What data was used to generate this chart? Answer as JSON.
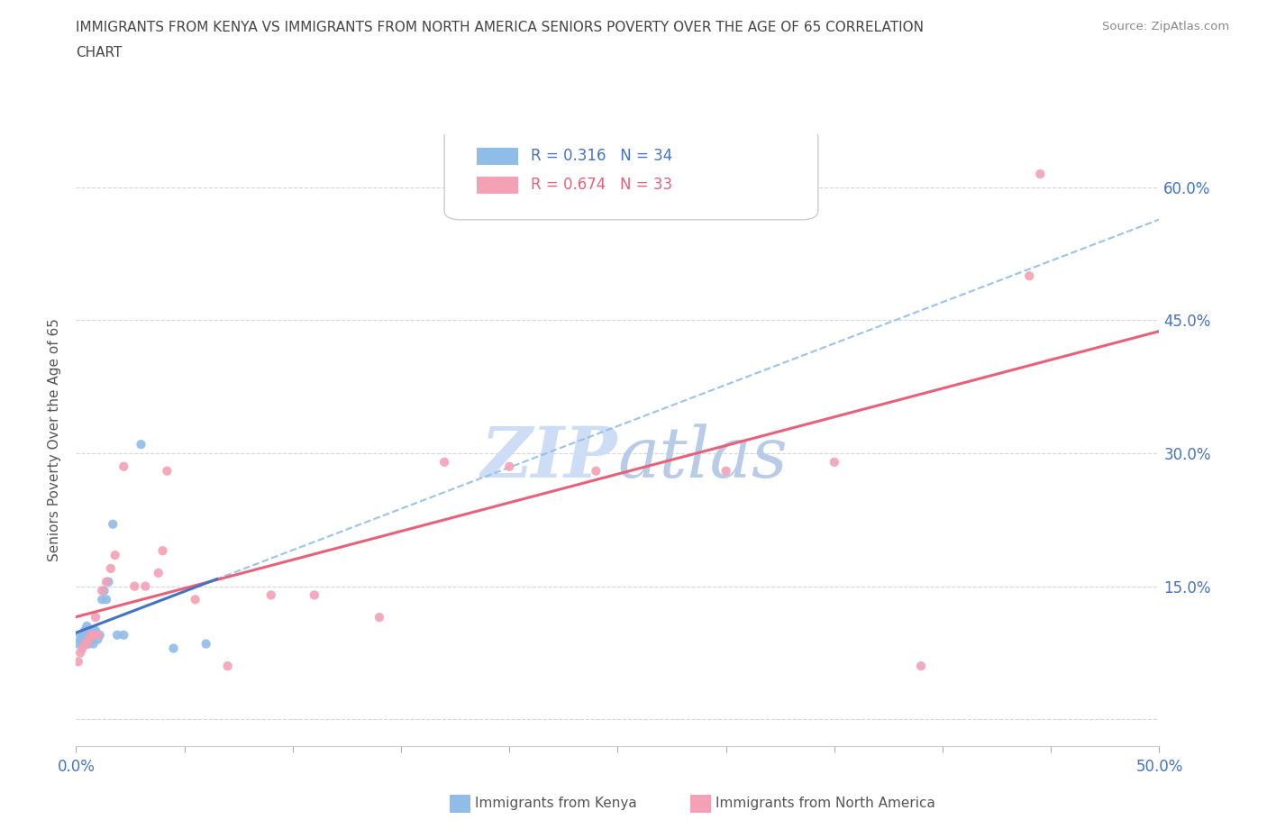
{
  "title_line1": "IMMIGRANTS FROM KENYA VS IMMIGRANTS FROM NORTH AMERICA SENIORS POVERTY OVER THE AGE OF 65 CORRELATION",
  "title_line2": "CHART",
  "source_text": "Source: ZipAtlas.com",
  "ylabel": "Seniors Poverty Over the Age of 65",
  "xlim": [
    0.0,
    0.5
  ],
  "ylim": [
    -0.03,
    0.66
  ],
  "kenya_color": "#90bce8",
  "north_america_color": "#f4a0b5",
  "kenya_line_color": "#4472c4",
  "north_america_line_color": "#e8607a",
  "kenya_dash_color": "#90bce8",
  "watermark_color": "#ccddf5",
  "legend_kenya_r": "R = 0.316",
  "legend_kenya_n": "N = 34",
  "legend_na_r": "R = 0.674",
  "legend_na_n": "N = 33",
  "kenya_x": [
    0.001,
    0.002,
    0.002,
    0.003,
    0.003,
    0.003,
    0.004,
    0.004,
    0.004,
    0.005,
    0.005,
    0.005,
    0.005,
    0.006,
    0.006,
    0.006,
    0.007,
    0.007,
    0.008,
    0.008,
    0.008,
    0.009,
    0.01,
    0.011,
    0.012,
    0.013,
    0.014,
    0.015,
    0.017,
    0.019,
    0.022,
    0.03,
    0.045,
    0.06
  ],
  "kenya_y": [
    0.085,
    0.09,
    0.095,
    0.085,
    0.09,
    0.095,
    0.085,
    0.09,
    0.1,
    0.085,
    0.09,
    0.095,
    0.105,
    0.085,
    0.09,
    0.1,
    0.09,
    0.1,
    0.085,
    0.09,
    0.1,
    0.1,
    0.09,
    0.095,
    0.135,
    0.145,
    0.135,
    0.155,
    0.22,
    0.095,
    0.095,
    0.31,
    0.08,
    0.085
  ],
  "na_x": [
    0.001,
    0.002,
    0.003,
    0.004,
    0.005,
    0.006,
    0.007,
    0.008,
    0.009,
    0.01,
    0.012,
    0.014,
    0.016,
    0.018,
    0.022,
    0.027,
    0.032,
    0.038,
    0.04,
    0.042,
    0.055,
    0.07,
    0.09,
    0.11,
    0.14,
    0.17,
    0.2,
    0.24,
    0.3,
    0.35,
    0.39,
    0.44,
    0.445
  ],
  "na_y": [
    0.065,
    0.075,
    0.08,
    0.085,
    0.085,
    0.09,
    0.095,
    0.095,
    0.115,
    0.095,
    0.145,
    0.155,
    0.17,
    0.185,
    0.285,
    0.15,
    0.15,
    0.165,
    0.19,
    0.28,
    0.135,
    0.06,
    0.14,
    0.14,
    0.115,
    0.29,
    0.285,
    0.28,
    0.28,
    0.29,
    0.06,
    0.5,
    0.615
  ],
  "background_color": "#ffffff",
  "axis_label_color": "#4472c4",
  "title_color": "#444444"
}
